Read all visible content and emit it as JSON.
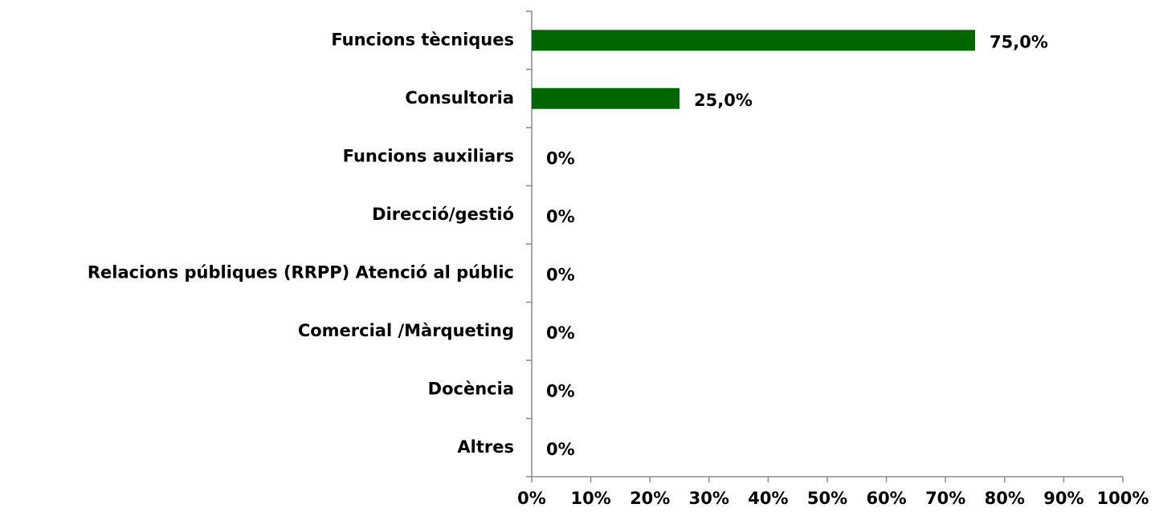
{
  "chart_data": {
    "type": "bar",
    "orientation": "horizontal",
    "categories": [
      "Funcions tècniques",
      "Consultoria",
      "Funcions auxiliars",
      "Direcció/gestió",
      "Relacions públiques (RRPP) Atenció al públic",
      "Comercial /Màrqueting",
      "Docència",
      "Altres"
    ],
    "values": [
      75,
      25,
      0,
      0,
      0,
      0,
      0,
      0
    ],
    "value_labels": [
      "75,0%",
      "25,0%",
      "0%",
      "0%",
      "0%",
      "0%",
      "0%",
      "0%"
    ],
    "color": "#006600",
    "xlim": [
      0,
      100
    ],
    "xticks": [
      {
        "value": 0,
        "label": "0%"
      },
      {
        "value": 10,
        "label": "10%"
      },
      {
        "value": 20,
        "label": "20%"
      },
      {
        "value": 30,
        "label": "30%"
      },
      {
        "value": 40,
        "label": "40%"
      },
      {
        "value": 50,
        "label": "50%"
      },
      {
        "value": 60,
        "label": "60%"
      },
      {
        "value": 70,
        "label": "70%"
      },
      {
        "value": 80,
        "label": "80%"
      },
      {
        "value": 90,
        "label": "90%"
      },
      {
        "value": 100,
        "label": "100%"
      }
    ],
    "grid": false
  }
}
